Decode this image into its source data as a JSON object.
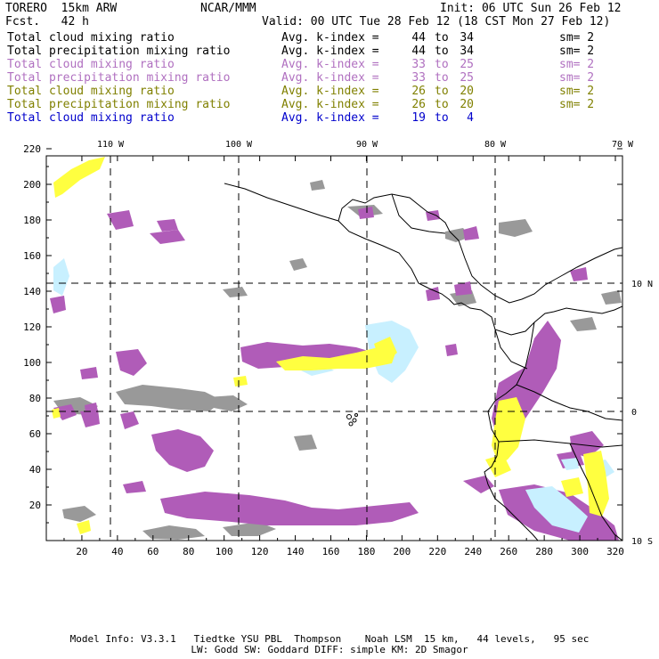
{
  "header": {
    "model": "TORERO  15km ARW",
    "org": "NCAR/MMM",
    "init": "Init: 06 UTC Sun 26 Feb 12",
    "fcst": "Fcst.   42 h",
    "valid": "Valid: 00 UTC Tue 28 Feb 12 (18 CST Mon 27 Feb 12)"
  },
  "legend": [
    {
      "field": "Total cloud mixing ratio",
      "avg": "Avg. k-index =",
      "a": "44",
      "to": "to",
      "b": "34",
      "sm": "sm= 2",
      "color": "#000000"
    },
    {
      "field": "Total precipitation mixing ratio",
      "avg": "Avg. k-index =",
      "a": "44",
      "to": "to",
      "b": "34",
      "sm": "sm= 2",
      "color": "#000000"
    },
    {
      "field": "Total cloud mixing ratio",
      "avg": "Avg. k-index =",
      "a": "33",
      "to": "to",
      "b": "25",
      "sm": "sm= 2",
      "color": "#b070c0"
    },
    {
      "field": "Total precipitation mixing ratio",
      "avg": "Avg. k-index =",
      "a": "33",
      "to": "to",
      "b": "25",
      "sm": "sm= 2",
      "color": "#b070c0"
    },
    {
      "field": "Total cloud mixing ratio",
      "avg": "Avg. k-index =",
      "a": "26",
      "to": "to",
      "b": "20",
      "sm": "sm= 2",
      "color": "#808000"
    },
    {
      "field": "Total precipitation mixing ratio",
      "avg": "Avg. k-index =",
      "a": "26",
      "to": "to",
      "b": "20",
      "sm": "sm= 2",
      "color": "#808000"
    },
    {
      "field": "Total cloud mixing ratio",
      "avg": "Avg. k-index =",
      "a": "19",
      "to": "to",
      "b": "4",
      "sm": "",
      "color": "#0000cc"
    }
  ],
  "map": {
    "lon_labels": [
      "110 W",
      "100 W",
      "90 W",
      "80 W",
      "70 W"
    ],
    "lat_labels": [
      "10 N",
      "0",
      "10 S"
    ],
    "y_ticks": [
      "20",
      "40",
      "60",
      "80",
      "100",
      "120",
      "140",
      "160",
      "180",
      "200",
      "220"
    ],
    "x_ticks": [
      "20",
      "40",
      "60",
      "80",
      "100",
      "120",
      "140",
      "160",
      "180",
      "200",
      "220",
      "240",
      "260",
      "280",
      "300",
      "320"
    ],
    "fill_colors": {
      "gray": "#999999",
      "purple": "#b05cb8",
      "yellow": "#ffff40",
      "lightblue": "#c8f0ff"
    }
  },
  "footer": {
    "line1": "Model Info: V3.3.1   Tiedtke YSU PBL  Thompson    Noah LSM  15 km,   44 levels,   95 sec",
    "line2": "LW: Godd SW: Goddard DIFF: simple KM: 2D Smagor"
  }
}
